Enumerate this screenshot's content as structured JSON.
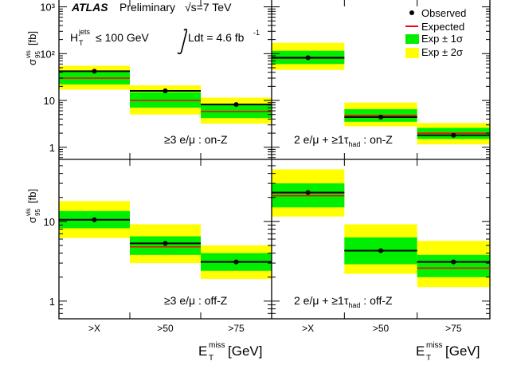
{
  "header": {
    "experiment": "ATLAS",
    "status": "Preliminary",
    "energy_prefix": "√s=7 TeV",
    "ht_cut": "H",
    "ht_cut_sup": "jets",
    "ht_cut_sub": "T",
    "ht_cut_value": "≤ 100 GeV",
    "lumi_label": "Ldt = 4.6 fb",
    "lumi_exp": "-1"
  },
  "legend": {
    "observed": "Observed",
    "expected": "Expected",
    "exp1": "Exp ± 1σ",
    "exp2": "Exp ± 2σ"
  },
  "colors": {
    "band1": "#00ee00",
    "band2": "#ffff00",
    "expected": "#ff0000",
    "observed": "#000000"
  },
  "axes": {
    "ylabel_top": "σ",
    "ylabel_top_sup": "vis",
    "ylabel_top_sub": "95",
    "ylabel_top_unit": "[fb]",
    "ylabel_bottom": "σ",
    "ylabel_bottom_sup": "vis",
    "ylabel_bottom_sub": "95",
    "ylabel_bottom_unit": "[fb]",
    "xlabel": "E",
    "xlabel_sup": "miss",
    "xlabel_sub": "T",
    "xlabel_unit": "[GeV]",
    "top_ticks": [
      "1",
      "10",
      "10²",
      "10³"
    ],
    "bottom_ticks": [
      "1",
      "10"
    ]
  },
  "chart_data": [
    {
      "type": "bar",
      "panel": "top-left",
      "label": "≥3 e/μ : on-Z",
      "categories": [
        ">X",
        ">50",
        ">75"
      ],
      "ylim": [
        0.55,
        1400
      ],
      "yscale": "log",
      "observed": [
        42,
        16,
        8.2
      ],
      "expected": [
        30,
        10,
        5.8
      ],
      "band1": [
        [
          22,
          42
        ],
        [
          7,
          15
        ],
        [
          4.2,
          8.3
        ]
      ],
      "band2": [
        [
          17,
          55
        ],
        [
          5,
          21
        ],
        [
          3.2,
          11.5
        ]
      ]
    },
    {
      "type": "bar",
      "panel": "top-right",
      "label": "2 e/μ + ≥1τ",
      "label_sub": "had",
      "label_suffix": " : on-Z",
      "categories": [
        ">X",
        ">50",
        ">75"
      ],
      "ylim": [
        0.55,
        1400
      ],
      "yscale": "log",
      "observed": [
        82,
        4.4,
        1.8
      ],
      "expected": [
        80,
        4.8,
        2.0
      ],
      "band1": [
        [
          60,
          115
        ],
        [
          3.5,
          6.5
        ],
        [
          1.5,
          2.6
        ]
      ],
      "band2": [
        [
          45,
          170
        ],
        [
          2.8,
          9.0
        ],
        [
          1.15,
          3.3
        ]
      ]
    },
    {
      "type": "bar",
      "panel": "bottom-left",
      "label": "≥3 e/μ : off-Z",
      "categories": [
        ">X",
        ">50",
        ">75"
      ],
      "ylim": [
        0.6,
        60
      ],
      "yscale": "log",
      "observed": [
        10.5,
        5.3,
        3.1
      ],
      "expected": [
        10.5,
        4.8,
        3.1
      ],
      "band1": [
        [
          8.2,
          13.5
        ],
        [
          3.8,
          6.5
        ],
        [
          2.4,
          4.0
        ]
      ],
      "band2": [
        [
          6.2,
          18.0
        ],
        [
          3.0,
          9.2
        ],
        [
          1.9,
          5.0
        ]
      ]
    },
    {
      "type": "bar",
      "panel": "bottom-right",
      "label": "2 e/μ + ≥1τ",
      "label_sub": "had",
      "label_suffix": " : off-Z",
      "categories": [
        ">X",
        ">50",
        ">75"
      ],
      "ylim": [
        0.6,
        60
      ],
      "yscale": "log",
      "observed": [
        23,
        4.3,
        3.1
      ],
      "expected": [
        21,
        4.3,
        2.6
      ],
      "band1": [
        [
          15,
          30
        ],
        [
          2.9,
          6.3
        ],
        [
          2.0,
          3.8
        ]
      ],
      "band2": [
        [
          11.5,
          45
        ],
        [
          2.2,
          9.2
        ],
        [
          1.5,
          5.7
        ]
      ]
    }
  ]
}
